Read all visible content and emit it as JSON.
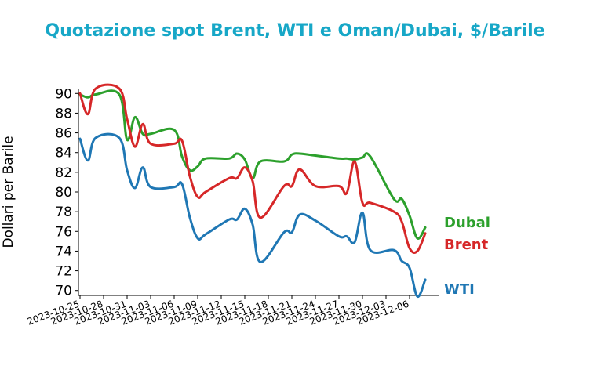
{
  "chart_data": {
    "type": "line",
    "title": "Quotazione spot Brent, WTI e Oman/Dubai, $/Barile",
    "ylabel": "Dollari per Barile",
    "xlabel": "",
    "ylim": [
      69.5,
      90.5
    ],
    "yticks": [
      70,
      72,
      74,
      76,
      78,
      80,
      82,
      84,
      86,
      88,
      90
    ],
    "xtick_labels": [
      "2023-10-25",
      "2023-10-28",
      "2023-10-31",
      "2023-11-03",
      "2023-11-06",
      "2023-11-09",
      "2023-11-12",
      "2023-11-15",
      "2023-11-18",
      "2023-11-21",
      "2023-11-24",
      "2023-11-27",
      "2023-11-30",
      "2023-12-03",
      "2023-12-06"
    ],
    "x": [
      "2023-10-25",
      "2023-10-26",
      "2023-10-27",
      "2023-10-30",
      "2023-10-31",
      "2023-11-01",
      "2023-11-02",
      "2023-11-03",
      "2023-11-06",
      "2023-11-07",
      "2023-11-08",
      "2023-11-09",
      "2023-11-10",
      "2023-11-13",
      "2023-11-14",
      "2023-11-15",
      "2023-11-16",
      "2023-11-17",
      "2023-11-20",
      "2023-11-21",
      "2023-11-22",
      "2023-11-24",
      "2023-11-27",
      "2023-11-28",
      "2023-11-29",
      "2023-11-30",
      "2023-12-01",
      "2023-12-04",
      "2023-12-05",
      "2023-12-06",
      "2023-12-07",
      "2023-12-08"
    ],
    "series": [
      {
        "name": "Dubai",
        "color": "#2ca02c",
        "values": [
          89.9,
          89.6,
          89.9,
          89.9,
          85.3,
          87.6,
          85.9,
          85.9,
          86.3,
          83.6,
          82.2,
          82.6,
          83.4,
          83.4,
          83.9,
          83.3,
          81.4,
          83.1,
          83.1,
          83.8,
          83.9,
          83.7,
          83.4,
          83.4,
          83.3,
          83.5,
          83.6,
          79.3,
          79.3,
          77.6,
          75.3,
          76.4
        ]
      },
      {
        "name": "Brent",
        "color": "#d62728",
        "values": [
          90.0,
          87.9,
          90.5,
          90.5,
          87.4,
          84.6,
          86.9,
          84.9,
          84.9,
          85.2,
          81.6,
          79.5,
          80.0,
          81.4,
          81.4,
          82.5,
          81.1,
          77.4,
          80.6,
          80.6,
          82.3,
          80.6,
          80.6,
          79.9,
          83.1,
          78.9,
          78.9,
          78.0,
          77.0,
          74.3,
          74.0,
          75.8
        ]
      },
      {
        "name": "WTI",
        "color": "#1f77b4",
        "values": [
          85.4,
          83.2,
          85.5,
          85.5,
          82.2,
          80.4,
          82.5,
          80.5,
          80.5,
          80.8,
          77.4,
          75.3,
          75.7,
          77.2,
          77.2,
          78.3,
          76.7,
          72.9,
          75.9,
          75.9,
          77.7,
          77.1,
          75.5,
          75.5,
          74.9,
          77.9,
          74.1,
          74.1,
          73.0,
          72.3,
          69.4,
          71.1
        ]
      }
    ]
  }
}
